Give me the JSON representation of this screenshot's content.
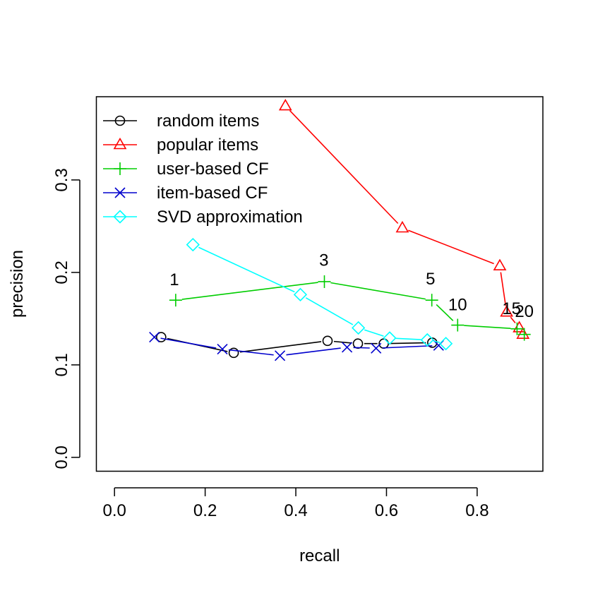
{
  "chart_data": {
    "type": "line",
    "title": "",
    "xlabel": "recall",
    "ylabel": "precision",
    "xlim": [
      -0.04,
      0.945
    ],
    "ylim": [
      -0.015,
      0.39
    ],
    "xticks": [
      0.0,
      0.2,
      0.4,
      0.6,
      0.8
    ],
    "xtick_labels": [
      "0.0",
      "0.2",
      "0.4",
      "0.6",
      "0.8"
    ],
    "yticks": [
      0.0,
      0.1,
      0.2,
      0.3
    ],
    "ytick_labels": [
      "0.0",
      "0.1",
      "0.2",
      "0.3"
    ],
    "grid": false,
    "legend_position": "top-left",
    "series": [
      {
        "name": "random items",
        "color": "#000000",
        "marker": "circle",
        "x": [
          0.103,
          0.263,
          0.47,
          0.537,
          0.594,
          0.701
        ],
        "y": [
          0.13,
          0.113,
          0.126,
          0.123,
          0.123,
          0.124
        ]
      },
      {
        "name": "popular items",
        "color": "#ff0000",
        "marker": "triangle",
        "x": [
          0.377,
          0.635,
          0.85,
          0.865,
          0.893,
          0.901
        ],
        "y": [
          0.38,
          0.248,
          0.207,
          0.157,
          0.14,
          0.133
        ]
      },
      {
        "name": "user-based CF",
        "color": "#00cd00",
        "marker": "plus",
        "x": [
          0.135,
          0.463,
          0.7,
          0.757,
          0.888,
          0.904
        ],
        "y": [
          0.17,
          0.19,
          0.17,
          0.143,
          0.139,
          0.133
        ]
      },
      {
        "name": "item-based CF",
        "color": "#0000cd",
        "marker": "cross",
        "x": [
          0.088,
          0.238,
          0.365,
          0.513,
          0.577,
          0.715
        ],
        "y": [
          0.13,
          0.117,
          0.11,
          0.119,
          0.118,
          0.121
        ]
      },
      {
        "name": "SVD approximation",
        "color": "#00ffff",
        "marker": "diamond",
        "x": [
          0.173,
          0.41,
          0.538,
          0.607,
          0.69,
          0.731
        ],
        "y": [
          0.23,
          0.176,
          0.14,
          0.129,
          0.127,
          0.123
        ]
      }
    ],
    "annotations": [
      {
        "text": "1",
        "x": 0.132,
        "y": 0.186
      },
      {
        "text": "3",
        "x": 0.462,
        "y": 0.207
      },
      {
        "text": "5",
        "x": 0.697,
        "y": 0.187
      },
      {
        "text": "10",
        "x": 0.757,
        "y": 0.159
      },
      {
        "text": "15",
        "x": 0.876,
        "y": 0.155
      },
      {
        "text": "20",
        "x": 0.904,
        "y": 0.152
      }
    ]
  }
}
